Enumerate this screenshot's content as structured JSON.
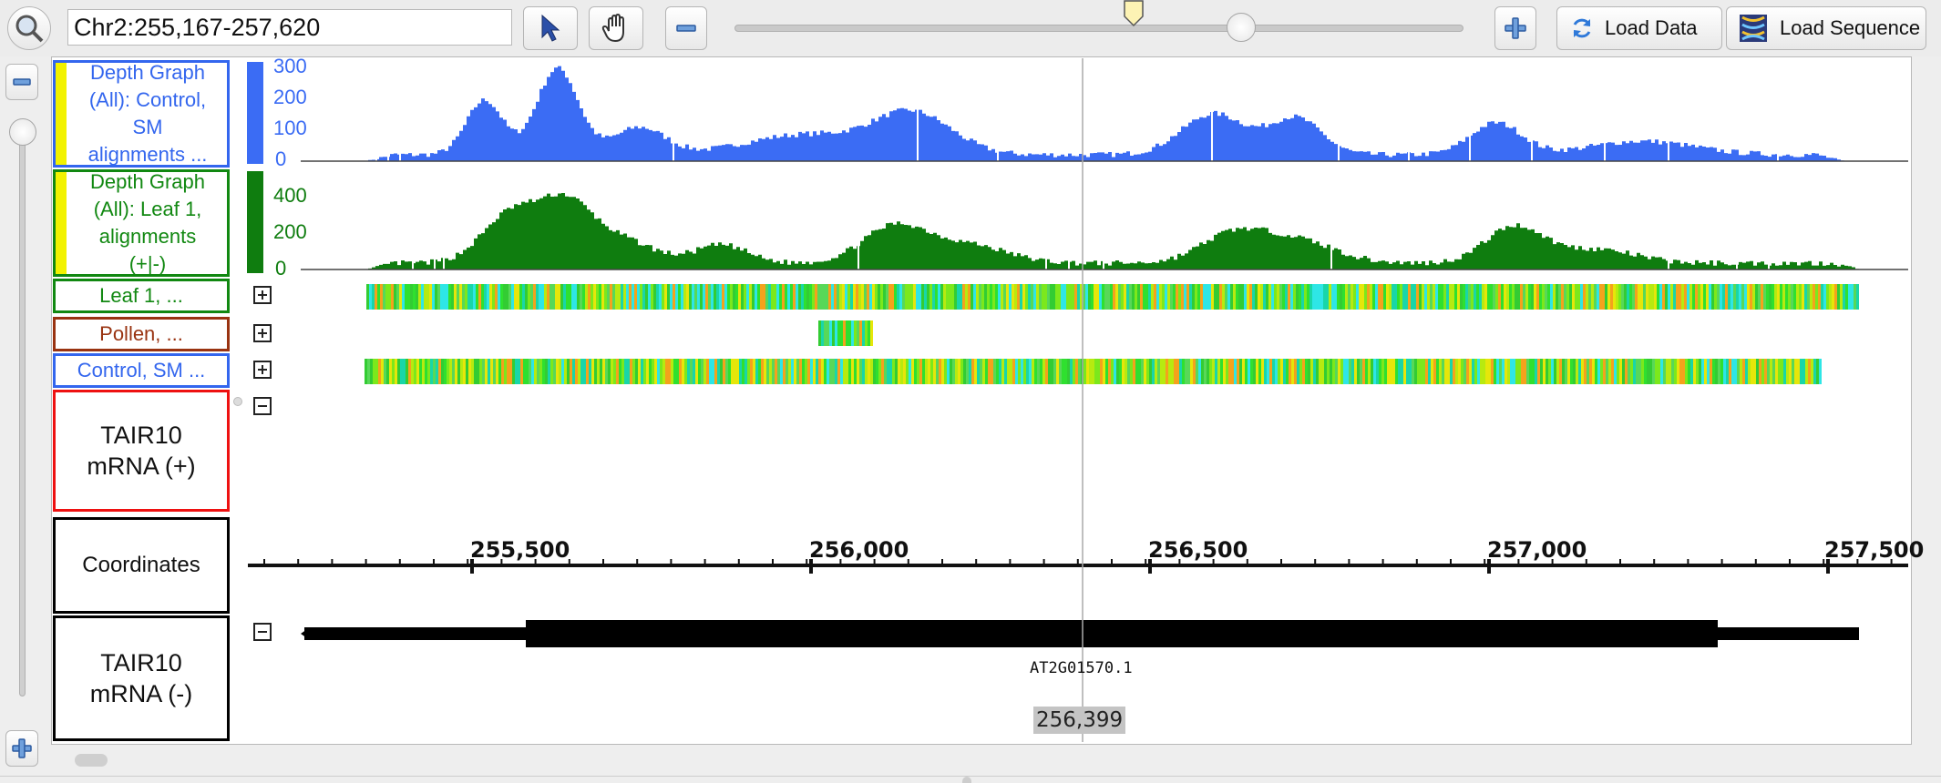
{
  "toolbar": {
    "location": "Chr2:255,167-257,620",
    "load_data_label": "Load Data",
    "load_sequence_label": "Load Sequence",
    "zoom_position": 0.55
  },
  "tracks": [
    {
      "label": "Depth Graph (All): Control, SM alignments ...",
      "lines": [
        "Depth Graph",
        "(All): Control,",
        "SM",
        "alignments ..."
      ],
      "color": "#3366ee"
    },
    {
      "label": "Depth Graph (All): Leaf 1, alignments (+|-)",
      "lines": [
        "Depth Graph",
        "(All):  Leaf  1,",
        "alignments",
        "(+|-)"
      ],
      "color": "#118811"
    },
    {
      "label": "Leaf  1, ...",
      "color": "#118811"
    },
    {
      "label": "Pollen, ...",
      "color": "#993311"
    },
    {
      "label": "Control, SM ...",
      "color": "#3366ee"
    },
    {
      "label": "TAIR10 mRNA (+)",
      "lines": [
        "TAIR10",
        "mRNA (+)"
      ],
      "color": "#ee1111"
    },
    {
      "label": "Coordinates",
      "color": "#000000"
    },
    {
      "label": "TAIR10 mRNA (-)",
      "lines": [
        "TAIR10",
        "mRNA (-)"
      ],
      "color": "#000000"
    }
  ],
  "depth_control": {
    "color": "#3b6cf4",
    "ticks": [
      "300",
      "200",
      "100",
      "0"
    ]
  },
  "depth_leaf": {
    "color": "#0f7d0f",
    "ticks": [
      "400",
      "200",
      "0"
    ]
  },
  "coordinates": {
    "ticks": [
      "255,500",
      "256,000",
      "256,500",
      "257,000",
      "257,500"
    ]
  },
  "gene": {
    "name": "AT2G01570.1"
  },
  "cursor": {
    "position": "256,399"
  }
}
